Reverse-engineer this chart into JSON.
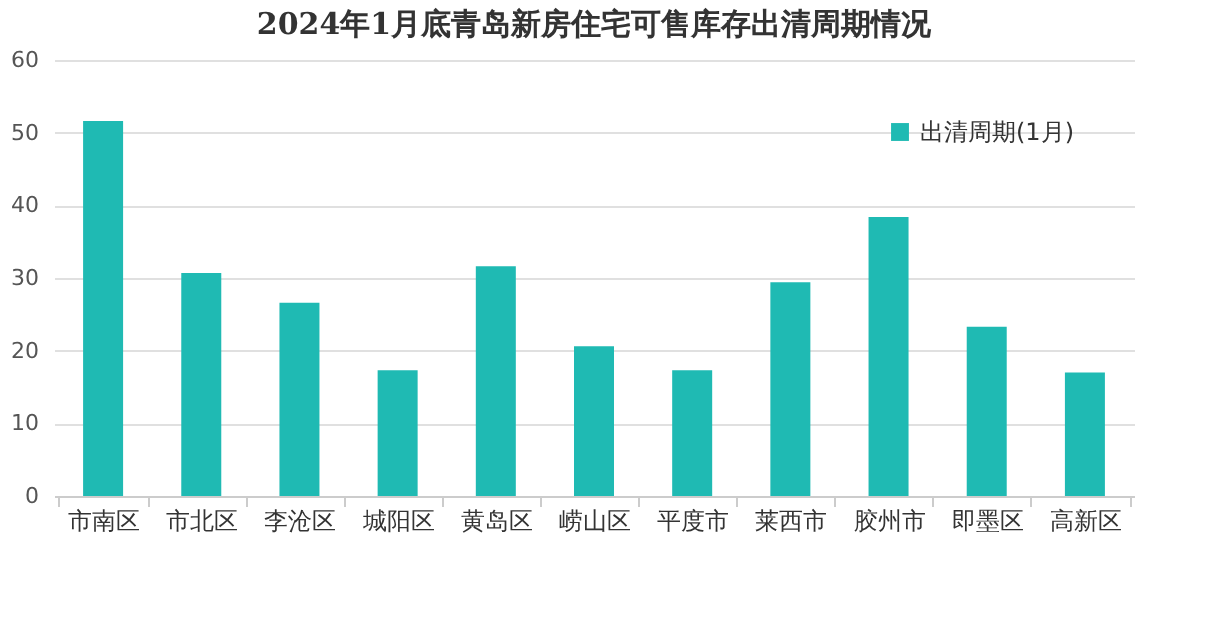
{
  "chart_data": {
    "type": "bar",
    "title": "2024年1月底青岛新房住宅可售库存出清周期情况",
    "categories": [
      "市南区",
      "市北区",
      "李沧区",
      "城阳区",
      "黄岛区",
      "崂山区",
      "平度市",
      "莱西市",
      "胶州市",
      "即墨区",
      "高新区"
    ],
    "series": [
      {
        "name": "出清周期(1月)",
        "color": "#1fbab3",
        "values": [
          51.6,
          30.7,
          26.6,
          17.3,
          31.6,
          20.6,
          17.3,
          29.4,
          38.4,
          23.3,
          17.0
        ]
      }
    ],
    "ylim": [
      0,
      60
    ],
    "yticks": [
      0,
      10,
      20,
      30,
      40,
      50,
      60
    ],
    "grid": "y",
    "legend": "top right"
  }
}
